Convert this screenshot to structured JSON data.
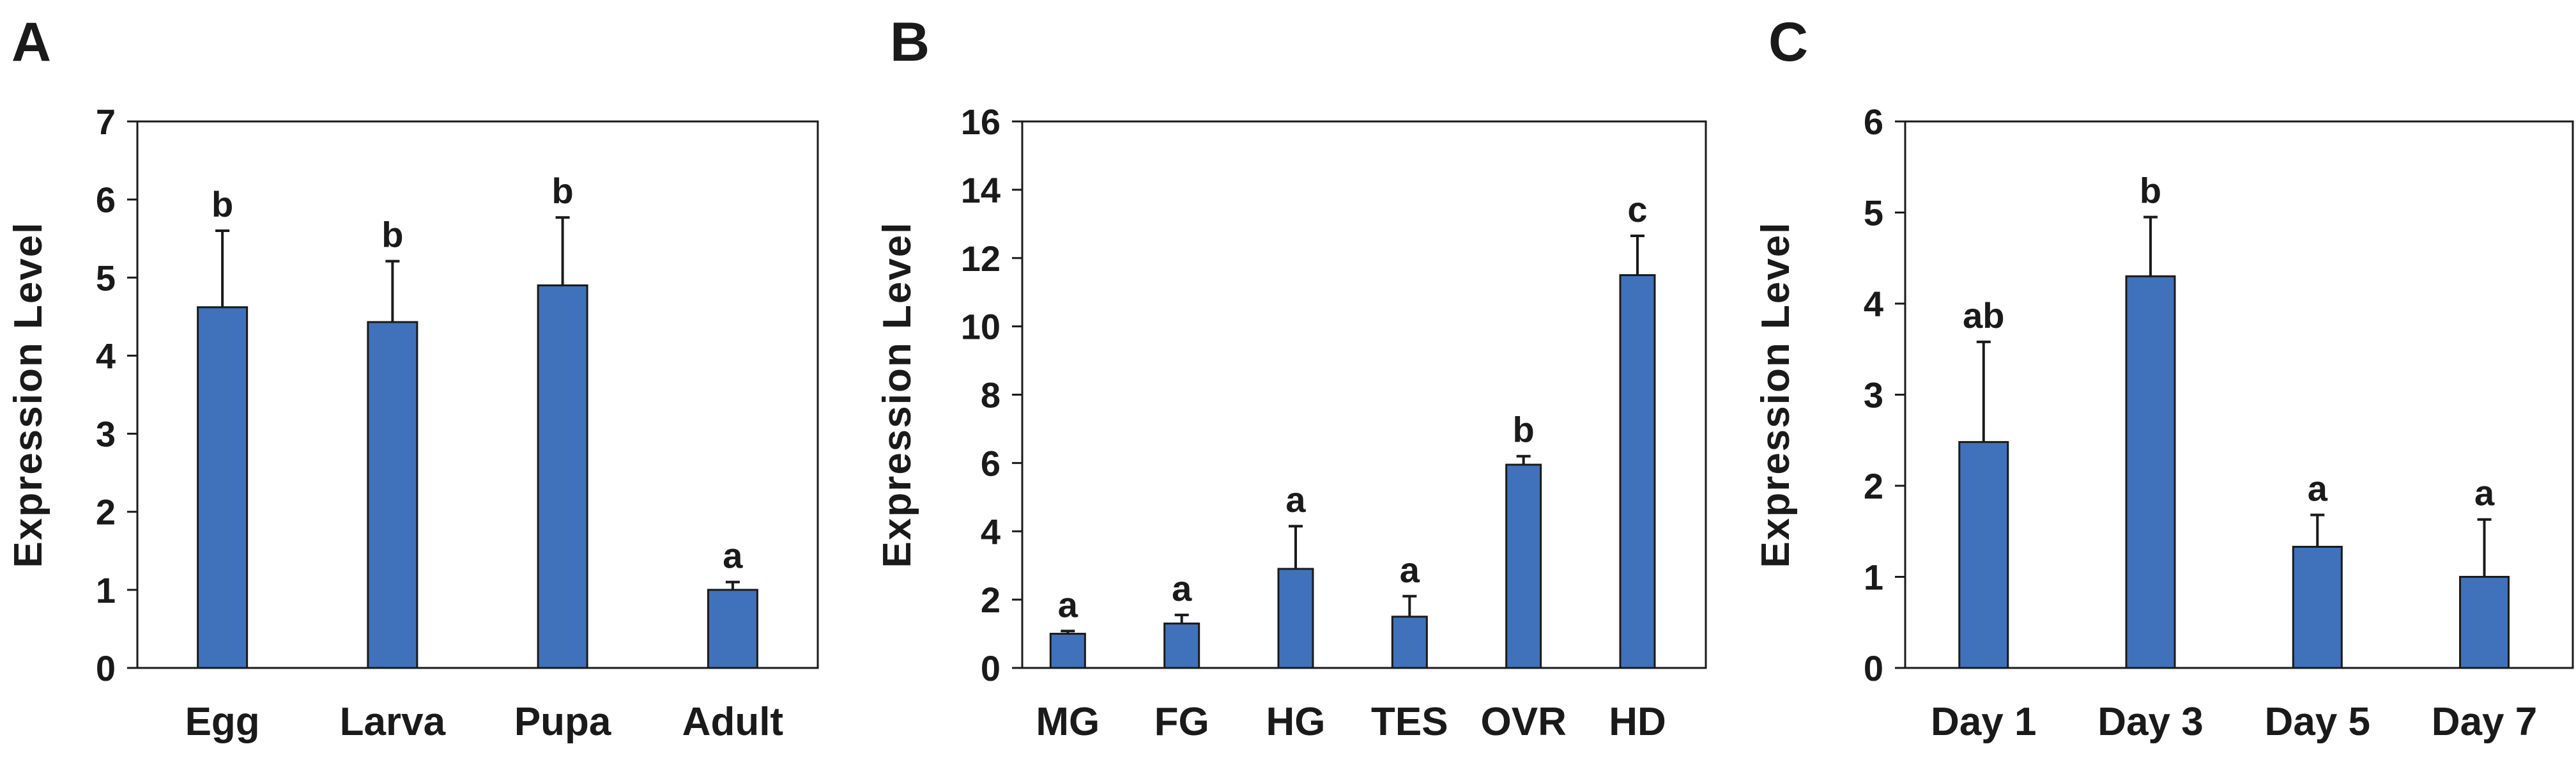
{
  "chart_data": [
    {
      "panel": "A",
      "type": "bar",
      "title": "",
      "xlabel": "",
      "ylabel": "Expression Level",
      "ylim": [
        0,
        7
      ],
      "yticks": [
        0,
        1,
        2,
        3,
        4,
        5,
        6,
        7
      ],
      "categories": [
        "Egg",
        "Larva",
        "Pupa",
        "Adult"
      ],
      "values": [
        4.62,
        4.43,
        4.9,
        1.0
      ],
      "errors": [
        0.98,
        0.78,
        0.87,
        0.1
      ],
      "significance": [
        "b",
        "b",
        "b",
        "a"
      ],
      "color": "#3f72bb"
    },
    {
      "panel": "B",
      "type": "bar",
      "title": "",
      "xlabel": "",
      "ylabel": "Expression Level",
      "ylim": [
        0,
        16
      ],
      "yticks": [
        0,
        2,
        4,
        6,
        8,
        10,
        12,
        14,
        16
      ],
      "categories": [
        "MG",
        "FG",
        "HG",
        "TES",
        "OVR",
        "HD"
      ],
      "values": [
        1.0,
        1.3,
        2.9,
        1.5,
        5.95,
        11.5
      ],
      "errors": [
        0.08,
        0.25,
        1.25,
        0.6,
        0.25,
        1.15
      ],
      "significance": [
        "a",
        "a",
        "a",
        "a",
        "b",
        "c"
      ],
      "color": "#3f72bb"
    },
    {
      "panel": "C",
      "type": "bar",
      "title": "",
      "xlabel": "",
      "ylabel": "Expression Level",
      "ylim": [
        0,
        6
      ],
      "yticks": [
        0,
        1,
        2,
        3,
        4,
        5,
        6
      ],
      "categories": [
        "Day 1",
        "Day 3",
        "Day 5",
        "Day 7"
      ],
      "values": [
        2.48,
        4.3,
        1.33,
        1.0
      ],
      "errors": [
        1.1,
        0.65,
        0.35,
        0.63
      ],
      "significance": [
        "ab",
        "b",
        "a",
        "a"
      ],
      "color": "#3f72bb"
    }
  ]
}
